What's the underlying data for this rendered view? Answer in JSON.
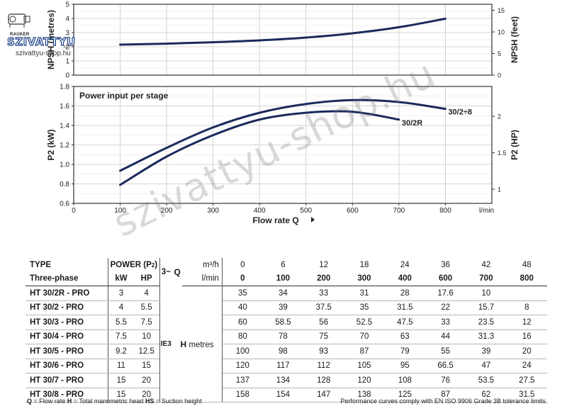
{
  "logo": {
    "brand": "RAUKER",
    "name": "SZIVATTYU",
    "sub": "KFT.",
    "url": "szivattyu-shop.hu"
  },
  "watermark": "szivattyu-shop.hu",
  "chart_data": [
    {
      "type": "line",
      "title": "",
      "xlabel": "",
      "ylabel": "NPSH (metres)",
      "y2label": "NPSH (feet)",
      "xlim": [
        0,
        900
      ],
      "ylim": [
        0,
        5
      ],
      "y2lim": [
        0,
        16.4
      ],
      "yticks": [
        "0",
        "1",
        "2",
        "3",
        "4",
        "5"
      ],
      "y2ticks": [
        "0",
        "5",
        "10",
        "15"
      ],
      "grid": true,
      "series": [
        {
          "x": [
            100,
            200,
            300,
            400,
            500,
            600,
            700,
            800
          ],
          "y": [
            2.15,
            2.22,
            2.32,
            2.45,
            2.65,
            2.95,
            3.38,
            3.98
          ]
        }
      ]
    },
    {
      "type": "line",
      "title": "Power input per stage",
      "xlabel": "Flow rate Q",
      "xunit": "l/min",
      "ylabel": "P2 (kW)",
      "y2label": "P2 (HP)",
      "xlim": [
        0,
        900
      ],
      "ylim": [
        0.6,
        1.8
      ],
      "y2lim": [
        0.805,
        2.41
      ],
      "xticks": [
        "0",
        "100",
        "200",
        "300",
        "400",
        "500",
        "600",
        "700",
        "800"
      ],
      "yticks": [
        "0.6",
        "0.8",
        "1.0",
        "1.2",
        "1.4",
        "1.6",
        "1.8"
      ],
      "y2ticks": [
        "1",
        "1.5",
        "2"
      ],
      "grid": true,
      "series": [
        {
          "name": "30/2÷8",
          "x": [
            100,
            200,
            300,
            400,
            500,
            600,
            700,
            800
          ],
          "y": [
            0.935,
            1.17,
            1.38,
            1.53,
            1.62,
            1.66,
            1.64,
            1.57
          ]
        },
        {
          "name": "30/2R",
          "x": [
            100,
            200,
            300,
            400,
            500,
            600,
            700
          ],
          "y": [
            0.79,
            1.08,
            1.3,
            1.46,
            1.53,
            1.54,
            1.46
          ]
        }
      ]
    }
  ],
  "table": {
    "h_type": "TYPE",
    "h_phase": "Three-phase",
    "h_power": "POWER (P",
    "h_power_sub": "2",
    "h_power_close": ")",
    "h_kw": "kW",
    "h_hp": "HP",
    "h_3": "3~",
    "h_q": "Q",
    "h_m3h": "m³/h",
    "h_lmin": "l/min",
    "q_m3h": [
      "0",
      "6",
      "12",
      "18",
      "24",
      "36",
      "42",
      "48"
    ],
    "q_lmin": [
      "0",
      "100",
      "200",
      "300",
      "400",
      "600",
      "700",
      "800"
    ],
    "ie": "IE3",
    "h_label": "H",
    "h_unit": "metres",
    "rows": [
      {
        "type": "HT 30/2R - PRO",
        "kw": "3",
        "hp": "4",
        "h": [
          "35",
          "34",
          "33",
          "31",
          "28",
          "17.6",
          "10",
          ""
        ]
      },
      {
        "type": "HT 30/2 - PRO",
        "kw": "4",
        "hp": "5.5",
        "h": [
          "40",
          "39",
          "37.5",
          "35",
          "31.5",
          "22",
          "15.7",
          "8"
        ]
      },
      {
        "type": "HT 30/3 - PRO",
        "kw": "5.5",
        "hp": "7.5",
        "h": [
          "60",
          "58.5",
          "56",
          "52.5",
          "47.5",
          "33",
          "23.5",
          "12"
        ]
      },
      {
        "type": "HT 30/4 - PRO",
        "kw": "7.5",
        "hp": "10",
        "h": [
          "80",
          "78",
          "75",
          "70",
          "63",
          "44",
          "31.3",
          "16"
        ]
      },
      {
        "type": "HT 30/5 - PRO",
        "kw": "9.2",
        "hp": "12.5",
        "h": [
          "100",
          "98",
          "93",
          "87",
          "79",
          "55",
          "39",
          "20"
        ]
      },
      {
        "type": "HT 30/6 - PRO",
        "kw": "11",
        "hp": "15",
        "h": [
          "120",
          "117",
          "112",
          "105",
          "95",
          "66.5",
          "47",
          "24"
        ]
      },
      {
        "type": "HT 30/7 - PRO",
        "kw": "15",
        "hp": "20",
        "h": [
          "137",
          "134",
          "128",
          "120",
          "108",
          "76",
          "53.5",
          "27.5"
        ]
      },
      {
        "type": "HT 30/8 - PRO",
        "kw": "15",
        "hp": "20",
        "h": [
          "158",
          "154",
          "147",
          "138",
          "125",
          "87",
          "62",
          "31.5"
        ]
      }
    ]
  },
  "footer": {
    "q_key": "Q",
    "q_text": " = Flow rate  ",
    "h_key": "H",
    "h_text": " = Total manometric head  ",
    "hs_key": "HS",
    "hs_text": " = Suction height",
    "note": "Performance curves comply with EN ISO 9906 Grade 3B tolerance limits."
  },
  "colors": {
    "curve": "#1b2a5c",
    "grid": "#c8c8c8",
    "axis": "#333333"
  }
}
